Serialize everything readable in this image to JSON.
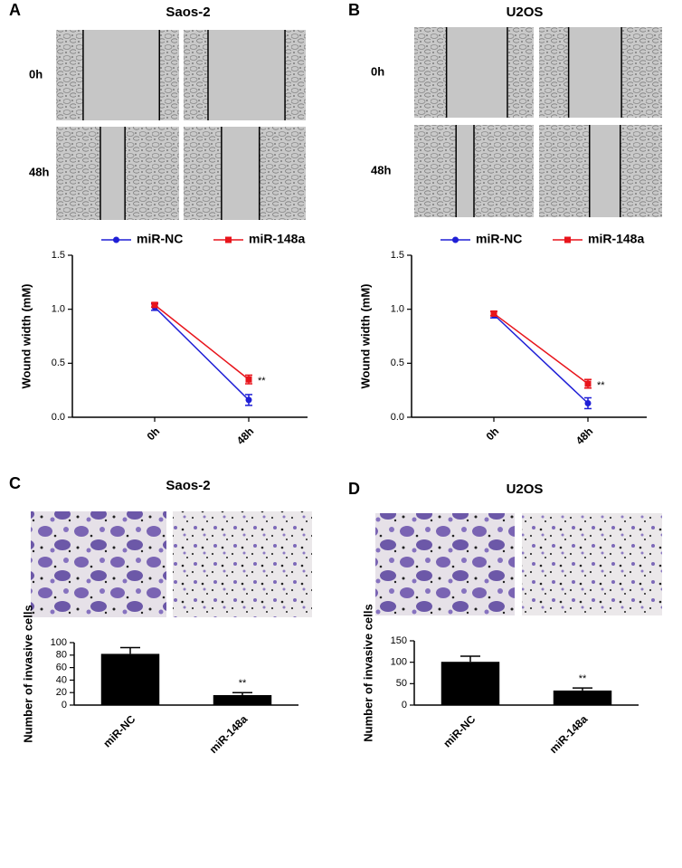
{
  "panels": [
    {
      "label": "A",
      "title": "Saos-2",
      "row_labels": [
        "0h",
        "48h"
      ]
    },
    {
      "label": "B",
      "title": "U2OS",
      "row_labels": [
        "0h",
        "48h"
      ]
    },
    {
      "label": "C",
      "title": "Saos-2"
    },
    {
      "label": "D",
      "title": "U2OS"
    }
  ],
  "chart_data": [
    {
      "type": "line",
      "ylabel": "Wound width (mM)",
      "categories": [
        "0h",
        "48h"
      ],
      "series": [
        {
          "name": "miR-NC",
          "color": "#1f1fd6",
          "marker": "circle",
          "values": [
            1.02,
            0.16
          ],
          "errors": [
            0.03,
            0.05
          ]
        },
        {
          "name": "miR-148a",
          "color": "#e8141b",
          "marker": "square",
          "values": [
            1.04,
            0.35
          ],
          "errors": [
            0.02,
            0.04
          ]
        }
      ],
      "ylim": [
        0,
        1.5
      ],
      "yticks": [
        {
          "value": 0,
          "label": "0.0"
        },
        0.5,
        {
          "value": 1,
          "label": "1.0"
        },
        1.5
      ],
      "annotation": "**"
    },
    {
      "type": "line",
      "ylabel": "Wound width (mM)",
      "categories": [
        "0h",
        "48h"
      ],
      "series": [
        {
          "name": "miR-NC",
          "color": "#1f1fd6",
          "marker": "circle",
          "values": [
            0.95,
            0.13
          ],
          "errors": [
            0.03,
            0.05
          ]
        },
        {
          "name": "miR-148a",
          "color": "#e8141b",
          "marker": "square",
          "values": [
            0.96,
            0.31
          ],
          "errors": [
            0.02,
            0.04
          ]
        }
      ],
      "ylim": [
        0,
        1.5
      ],
      "yticks": [
        {
          "value": 0,
          "label": "0.0"
        },
        0.5,
        {
          "value": 1,
          "label": "1.0"
        },
        1.5
      ],
      "annotation": "**"
    },
    {
      "type": "bar",
      "ylabel": "Number of invasive cells",
      "categories": [
        "miR-NC",
        "miR-148a"
      ],
      "values": [
        82,
        16
      ],
      "errors": [
        10,
        4
      ],
      "color": "#000000",
      "ylim": [
        0,
        100
      ],
      "yticks": [
        0,
        20,
        40,
        60,
        80,
        100
      ],
      "annotation": "**"
    },
    {
      "type": "bar",
      "ylabel": "Number of invasive cells",
      "categories": [
        "miR-NC",
        "miR-148a"
      ],
      "values": [
        101,
        34
      ],
      "errors": [
        13,
        6
      ],
      "color": "#000000",
      "ylim": [
        0,
        150
      ],
      "yticks": [
        0,
        50,
        100,
        150
      ],
      "annotation": "**"
    }
  ]
}
